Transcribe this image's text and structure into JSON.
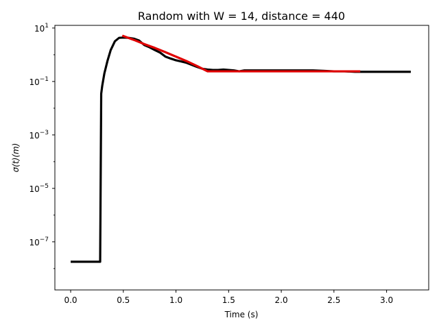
{
  "chart_data": {
    "type": "line",
    "title": "Random with W = 14, distance = 440",
    "xlabel": "Time (s)",
    "ylabel": "σ(t)(m)",
    "xlim": [
      -0.15,
      3.4
    ],
    "ylim_log10": [
      -8.8,
      1.1
    ],
    "yscale": "log",
    "grid": false,
    "x_ticks": [
      {
        "value": 0.0,
        "label": "0.0"
      },
      {
        "value": 0.5,
        "label": "0.5"
      },
      {
        "value": 1.0,
        "label": "1.0"
      },
      {
        "value": 1.5,
        "label": "1.5"
      },
      {
        "value": 2.0,
        "label": "2.0"
      },
      {
        "value": 2.5,
        "label": "2.5"
      },
      {
        "value": 3.0,
        "label": "3.0"
      }
    ],
    "y_ticks": [
      {
        "log10": 1,
        "base": "10",
        "exp": "1"
      },
      {
        "log10": -1,
        "base": "10",
        "exp": "−1"
      },
      {
        "log10": -3,
        "base": "10",
        "exp": "−3"
      },
      {
        "log10": -5,
        "base": "10",
        "exp": "−5"
      },
      {
        "log10": -7,
        "base": "10",
        "exp": "−7"
      }
    ],
    "series": [
      {
        "color": "#000000",
        "x": [
          0.0,
          0.28,
          0.29,
          0.3,
          0.32,
          0.35,
          0.38,
          0.42,
          0.46,
          0.5,
          0.55,
          0.6,
          0.65,
          0.7,
          0.75,
          0.8,
          0.85,
          0.9,
          0.95,
          1.0,
          1.05,
          1.1,
          1.15,
          1.2,
          1.25,
          1.3,
          1.35,
          1.4,
          1.45,
          1.5,
          1.55,
          1.6,
          1.65,
          1.7,
          1.8,
          1.9,
          2.0,
          2.1,
          2.2,
          2.3,
          2.4,
          2.5,
          2.6,
          2.7,
          2.8,
          2.9,
          3.0,
          3.1,
          3.23
        ],
        "y": [
          1.8e-08,
          1.8e-08,
          0.035,
          0.07,
          0.2,
          0.6,
          1.5,
          3.2,
          4.3,
          4.4,
          4.3,
          4.0,
          3.4,
          2.3,
          1.9,
          1.5,
          1.2,
          0.85,
          0.72,
          0.62,
          0.56,
          0.5,
          0.42,
          0.35,
          0.3,
          0.28,
          0.27,
          0.27,
          0.28,
          0.27,
          0.26,
          0.24,
          0.26,
          0.26,
          0.26,
          0.26,
          0.26,
          0.26,
          0.26,
          0.26,
          0.25,
          0.24,
          0.24,
          0.23,
          0.23,
          0.23,
          0.23,
          0.23,
          0.23
        ]
      },
      {
        "color": "#e00000",
        "x": [
          0.49,
          0.6,
          0.7,
          0.8,
          0.9,
          1.0,
          1.1,
          1.2,
          1.3,
          1.4,
          1.5,
          1.6,
          1.8,
          2.0,
          2.2,
          2.4,
          2.6,
          2.75
        ],
        "y": [
          5.2,
          3.6,
          2.5,
          1.8,
          1.25,
          0.85,
          0.58,
          0.38,
          0.24,
          0.24,
          0.24,
          0.24,
          0.24,
          0.24,
          0.24,
          0.24,
          0.24,
          0.24
        ]
      }
    ]
  }
}
